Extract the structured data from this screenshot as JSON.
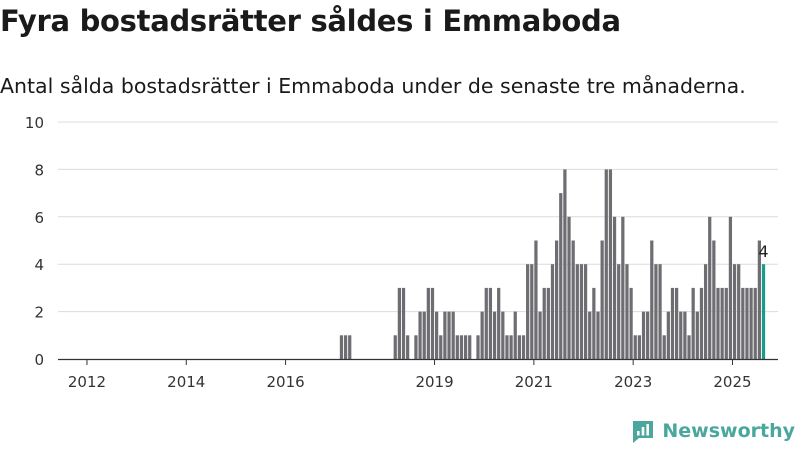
{
  "title": "Fyra bostadsrätter såldes i Emmaboda",
  "subtitle": "Antal sålda bostadsrätter i Emmaboda under de senaste tre månaderna.",
  "brand": {
    "name": "Newsworthy",
    "icon": "newsworthy-logo-icon",
    "color": "#4aa79d"
  },
  "chart_data": {
    "type": "bar",
    "ylim": [
      0,
      10
    ],
    "yticks": [
      0,
      2,
      4,
      6,
      8,
      10
    ],
    "xticks": [
      "2012",
      "2014",
      "2016",
      "2019",
      "2021",
      "2023",
      "2025"
    ],
    "xlim": [
      "2011-06",
      "2025-12"
    ],
    "grid": true,
    "bar_color": "#6e6d72",
    "highlight_color": "#1a9a8c",
    "highlight_label": "4",
    "series": [
      {
        "values": [
          {
            "x": "2017-02",
            "y": 1
          },
          {
            "x": "2017-03",
            "y": 1
          },
          {
            "x": "2017-04",
            "y": 1
          },
          {
            "x": "2018-03",
            "y": 1
          },
          {
            "x": "2018-04",
            "y": 3
          },
          {
            "x": "2018-05",
            "y": 3
          },
          {
            "x": "2018-06",
            "y": 1
          },
          {
            "x": "2018-07",
            "y": 0
          },
          {
            "x": "2018-08",
            "y": 1
          },
          {
            "x": "2018-09",
            "y": 2
          },
          {
            "x": "2018-10",
            "y": 2
          },
          {
            "x": "2018-11",
            "y": 3
          },
          {
            "x": "2018-12",
            "y": 3
          },
          {
            "x": "2019-01",
            "y": 2
          },
          {
            "x": "2019-02",
            "y": 1
          },
          {
            "x": "2019-03",
            "y": 2
          },
          {
            "x": "2019-04",
            "y": 2
          },
          {
            "x": "2019-05",
            "y": 2
          },
          {
            "x": "2019-06",
            "y": 1
          },
          {
            "x": "2019-07",
            "y": 1
          },
          {
            "x": "2019-08",
            "y": 1
          },
          {
            "x": "2019-09",
            "y": 1
          },
          {
            "x": "2019-10",
            "y": 0
          },
          {
            "x": "2019-11",
            "y": 1
          },
          {
            "x": "2019-12",
            "y": 2
          },
          {
            "x": "2020-01",
            "y": 3
          },
          {
            "x": "2020-02",
            "y": 3
          },
          {
            "x": "2020-03",
            "y": 2
          },
          {
            "x": "2020-04",
            "y": 3
          },
          {
            "x": "2020-05",
            "y": 2
          },
          {
            "x": "2020-06",
            "y": 1
          },
          {
            "x": "2020-07",
            "y": 1
          },
          {
            "x": "2020-08",
            "y": 2
          },
          {
            "x": "2020-09",
            "y": 1
          },
          {
            "x": "2020-10",
            "y": 1
          },
          {
            "x": "2020-11",
            "y": 4
          },
          {
            "x": "2020-12",
            "y": 4
          },
          {
            "x": "2021-01",
            "y": 5
          },
          {
            "x": "2021-02",
            "y": 2
          },
          {
            "x": "2021-03",
            "y": 3
          },
          {
            "x": "2021-04",
            "y": 3
          },
          {
            "x": "2021-05",
            "y": 4
          },
          {
            "x": "2021-06",
            "y": 5
          },
          {
            "x": "2021-07",
            "y": 7
          },
          {
            "x": "2021-08",
            "y": 8
          },
          {
            "x": "2021-09",
            "y": 6
          },
          {
            "x": "2021-10",
            "y": 5
          },
          {
            "x": "2021-11",
            "y": 4
          },
          {
            "x": "2021-12",
            "y": 4
          },
          {
            "x": "2022-01",
            "y": 4
          },
          {
            "x": "2022-02",
            "y": 2
          },
          {
            "x": "2022-03",
            "y": 3
          },
          {
            "x": "2022-04",
            "y": 2
          },
          {
            "x": "2022-05",
            "y": 5
          },
          {
            "x": "2022-06",
            "y": 8
          },
          {
            "x": "2022-07",
            "y": 8
          },
          {
            "x": "2022-08",
            "y": 6
          },
          {
            "x": "2022-09",
            "y": 4
          },
          {
            "x": "2022-10",
            "y": 6
          },
          {
            "x": "2022-11",
            "y": 4
          },
          {
            "x": "2022-12",
            "y": 3
          },
          {
            "x": "2023-01",
            "y": 1
          },
          {
            "x": "2023-02",
            "y": 1
          },
          {
            "x": "2023-03",
            "y": 2
          },
          {
            "x": "2023-04",
            "y": 2
          },
          {
            "x": "2023-05",
            "y": 5
          },
          {
            "x": "2023-06",
            "y": 4
          },
          {
            "x": "2023-07",
            "y": 4
          },
          {
            "x": "2023-08",
            "y": 1
          },
          {
            "x": "2023-09",
            "y": 2
          },
          {
            "x": "2023-10",
            "y": 3
          },
          {
            "x": "2023-11",
            "y": 3
          },
          {
            "x": "2023-12",
            "y": 2
          },
          {
            "x": "2024-01",
            "y": 2
          },
          {
            "x": "2024-02",
            "y": 1
          },
          {
            "x": "2024-03",
            "y": 3
          },
          {
            "x": "2024-04",
            "y": 2
          },
          {
            "x": "2024-05",
            "y": 3
          },
          {
            "x": "2024-06",
            "y": 4
          },
          {
            "x": "2024-07",
            "y": 6
          },
          {
            "x": "2024-08",
            "y": 5
          },
          {
            "x": "2024-09",
            "y": 3
          },
          {
            "x": "2024-10",
            "y": 3
          },
          {
            "x": "2024-11",
            "y": 3
          },
          {
            "x": "2024-12",
            "y": 6
          },
          {
            "x": "2025-01",
            "y": 4
          },
          {
            "x": "2025-02",
            "y": 4
          },
          {
            "x": "2025-03",
            "y": 3
          },
          {
            "x": "2025-04",
            "y": 3
          },
          {
            "x": "2025-05",
            "y": 3
          },
          {
            "x": "2025-06",
            "y": 3
          },
          {
            "x": "2025-07",
            "y": 5
          },
          {
            "x": "2025-08",
            "y": 4
          }
        ]
      }
    ]
  }
}
